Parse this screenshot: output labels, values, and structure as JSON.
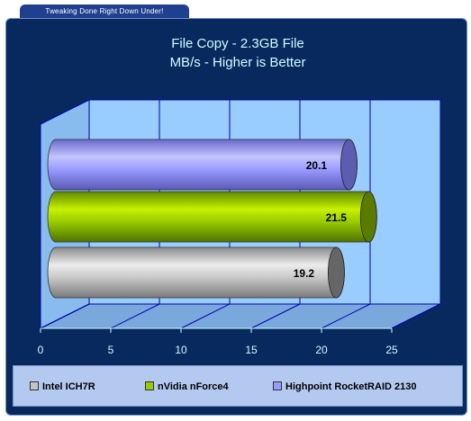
{
  "banner": {
    "text": "Tweaking Done Right Down Under!"
  },
  "chart_data": {
    "type": "bar",
    "orientation": "horizontal",
    "title": "File Copy - 2.3GB File",
    "subtitle": "MB/s - Higher is Better",
    "categories": [
      "Intel ICH7R",
      "nVidia nForce4",
      "Highpoint RocketRAID 2130"
    ],
    "values": [
      19.2,
      21.5,
      20.1
    ],
    "data_labels": [
      "19.2",
      "21.5",
      "20.1"
    ],
    "xlim": [
      0,
      25
    ],
    "x_ticks": [
      "0",
      "5",
      "10",
      "15",
      "20",
      "25"
    ],
    "grid": true,
    "legend_position": "bottom",
    "colors": {
      "Intel ICH7R": "#c4c4c4",
      "nVidia nForce4": "#99cc00",
      "Highpoint RocketRAID 2130": "#9999ff",
      "panel_bg": "#08295e",
      "plot_bg": "#99ccff",
      "title_text": "#ccffff"
    }
  }
}
